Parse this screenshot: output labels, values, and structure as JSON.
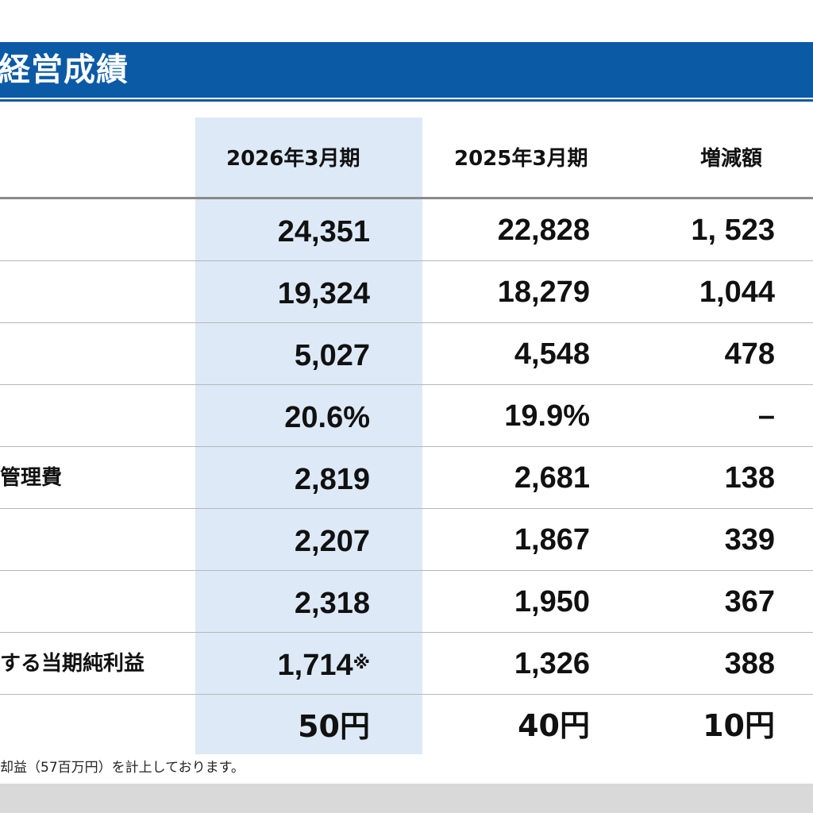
{
  "title": "経営成績",
  "columns": {
    "current": "2026年3月期",
    "previous": "2025年3月期",
    "change": "増減額"
  },
  "rows": [
    {
      "label": "",
      "current": "24,351",
      "current_mark": "",
      "previous": "22,828",
      "change": "1, 523"
    },
    {
      "label": "",
      "current": "19,324",
      "current_mark": "",
      "previous": "18,279",
      "change": "1,044"
    },
    {
      "label": "",
      "current": "5,027",
      "current_mark": "",
      "previous": "4,548",
      "change": "478"
    },
    {
      "label": "",
      "current": "20.6%",
      "current_mark": "",
      "previous": "19.9%",
      "change": "–"
    },
    {
      "label": "管理費",
      "current": "2,819",
      "current_mark": "",
      "previous": "2,681",
      "change": "138"
    },
    {
      "label": "",
      "current": "2,207",
      "current_mark": "",
      "previous": "1,867",
      "change": "339"
    },
    {
      "label": "",
      "current": "2,318",
      "current_mark": "",
      "previous": "1,950",
      "change": "367"
    },
    {
      "label": "する当期純利益",
      "current": "1,714",
      "current_mark": "※",
      "previous": "1,326",
      "change": "388"
    },
    {
      "label": "",
      "current": "50円",
      "current_mark": "",
      "previous": "40円",
      "change": "10円"
    }
  ],
  "footnote": "却益（57百万円）を計上しております。",
  "colors": {
    "title_bar": "#0b5aa6",
    "highlight_column": "#dde9f6",
    "bottom_band": "#d9d9d9"
  }
}
